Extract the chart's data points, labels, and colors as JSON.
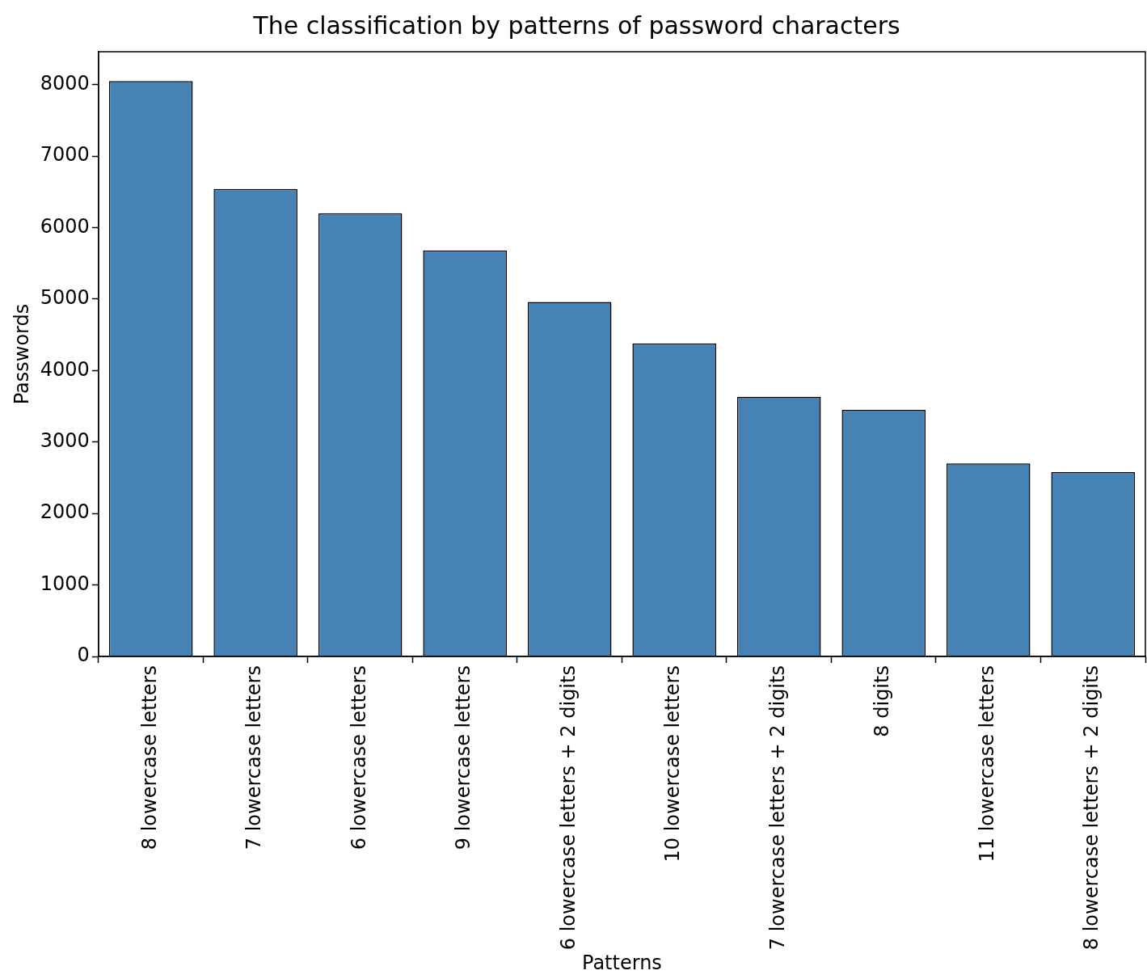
{
  "chart_data": {
    "type": "bar",
    "title": "The classification by patterns of password characters",
    "xlabel": "Patterns",
    "ylabel": "Passwords",
    "categories": [
      "8 lowercase letters",
      "7 lowercase letters",
      "6 lowercase letters",
      "9 lowercase letters",
      "6 lowercase letters + 2 digits",
      "10 lowercase letters",
      "7 lowercase letters + 2 digits",
      "8 digits",
      "11 lowercase letters",
      "8 lowercase letters + 2 digits"
    ],
    "values": [
      8050,
      6540,
      6200,
      5680,
      4960,
      4380,
      3630,
      3450,
      2700,
      2580
    ],
    "color": "#4682b4",
    "ylim": [
      0,
      8460
    ],
    "yticks": [
      0,
      1000,
      2000,
      3000,
      4000,
      5000,
      6000,
      7000,
      8000
    ],
    "grid": false,
    "legend": false
  }
}
